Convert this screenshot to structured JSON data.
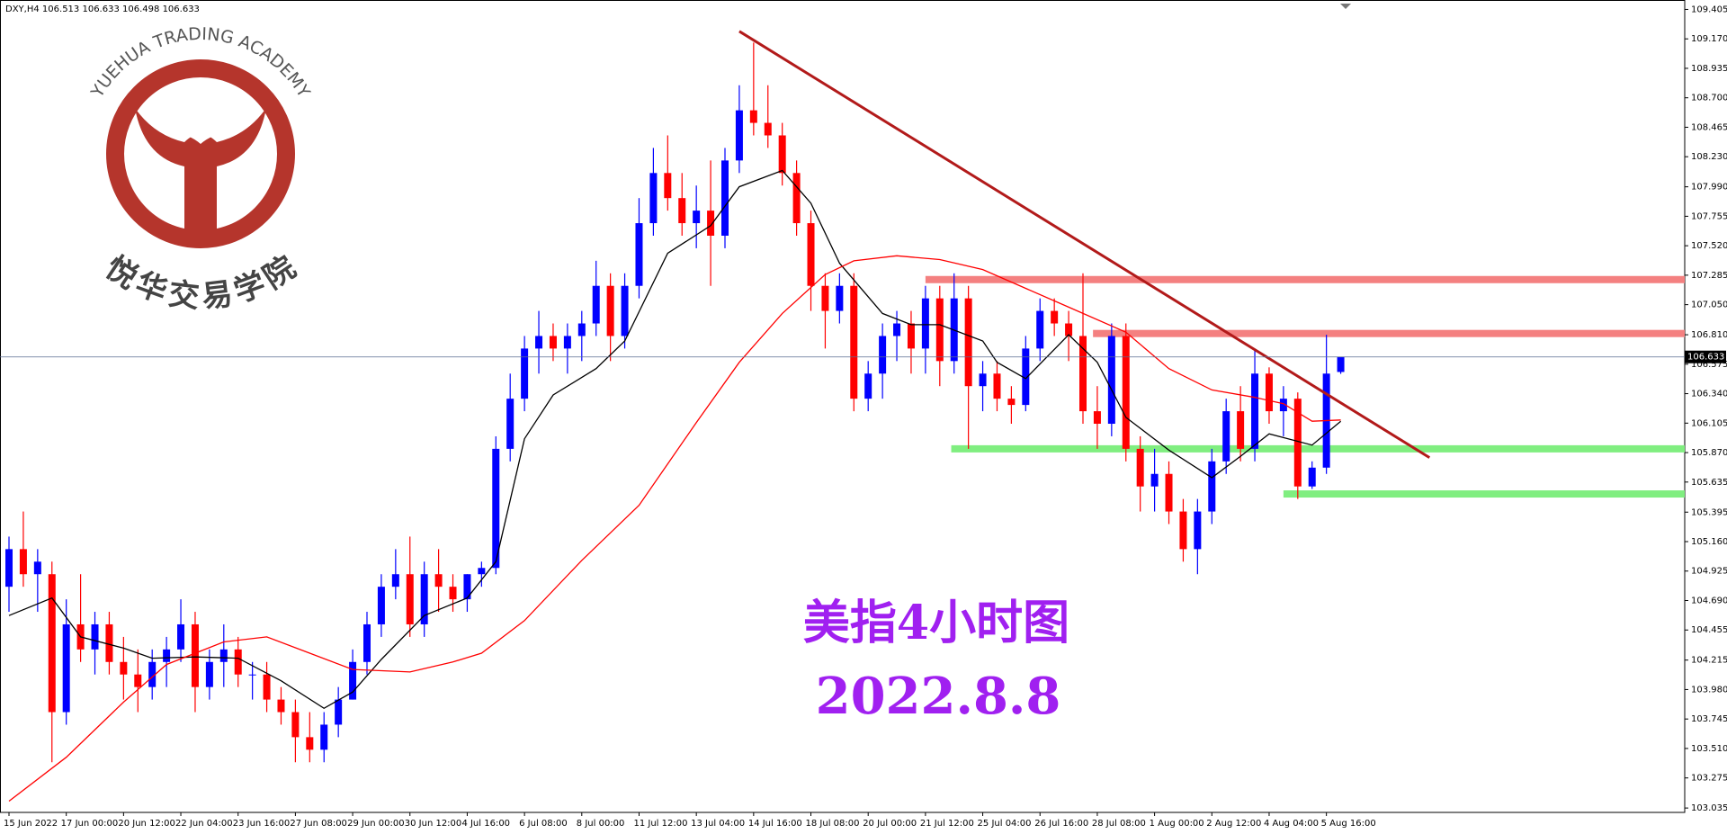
{
  "logo": {
    "arc_text": "YUEHUA TRADING ACADEMY",
    "name": "悦华交易学院"
  },
  "chart_data": {
    "type": "candlestick",
    "symbol": "DXY,H4",
    "annotations": [
      "美指4小时图",
      "2022.8.8"
    ],
    "up_color": "#0000ff",
    "down_color": "#ff0000",
    "ylim": [
      103.0,
      109.48
    ],
    "yticks": [
      109.405,
      {
        "value": 109.17,
        "label": "109.170"
      },
      108.935,
      {
        "value": 108.7,
        "label": "108.700"
      },
      108.465,
      {
        "value": 108.23,
        "label": "108.230"
      },
      {
        "value": 107.99,
        "label": "107.990"
      },
      107.755,
      {
        "value": 107.52,
        "label": "107.520"
      },
      107.285,
      {
        "value": 107.05,
        "label": "107.050"
      },
      {
        "value": 106.81,
        "label": "106.810"
      },
      106.575,
      {
        "value": 106.34,
        "label": "106.340"
      },
      106.105,
      {
        "value": 105.87,
        "label": "105.870"
      },
      105.635,
      105.395,
      {
        "value": 105.16,
        "label": "105.160"
      },
      104.925,
      {
        "value": 104.69,
        "label": "104.690"
      },
      104.455,
      104.215,
      {
        "value": 103.98,
        "label": "103.980"
      },
      103.745,
      {
        "value": 103.51,
        "label": "103.510"
      },
      103.275,
      103.035
    ],
    "categories": [
      "15 Jun 2022",
      null,
      null,
      null,
      "17 Jun 00:00",
      null,
      null,
      null,
      "20 Jun 12:00",
      null,
      null,
      null,
      "22 Jun 04:00",
      null,
      null,
      null,
      "23 Jun 16:00",
      null,
      null,
      null,
      "27 Jun 08:00",
      null,
      null,
      null,
      "29 Jun 00:00",
      null,
      null,
      null,
      "30 Jun 12:00",
      null,
      null,
      null,
      "4 Jul 16:00",
      null,
      null,
      null,
      "6 Jul 08:00",
      null,
      null,
      null,
      "8 Jul 00:00",
      null,
      null,
      null,
      "11 Jul 12:00",
      null,
      null,
      null,
      "13 Jul 04:00",
      null,
      null,
      null,
      "14 Jul 16:00",
      null,
      null,
      null,
      "18 Jul 08:00",
      null,
      null,
      null,
      "20 Jul 00:00",
      null,
      null,
      null,
      "21 Jul 12:00",
      null,
      null,
      null,
      "25 Jul 04:00",
      null,
      null,
      null,
      "26 Jul 16:00",
      null,
      null,
      null,
      "28 Jul 08:00",
      null,
      null,
      null,
      "1 Aug 00:00",
      null,
      null,
      null,
      "2 Aug 12:00",
      null,
      null,
      null,
      "4 Aug 04:00",
      null,
      null,
      null,
      "5 Aug 16:00",
      null
    ],
    "ohlc": [
      [
        104.8,
        105.2,
        104.6,
        105.1
      ],
      [
        105.1,
        105.4,
        104.8,
        104.9
      ],
      [
        104.9,
        105.1,
        104.6,
        105.0
      ],
      [
        104.9,
        105.0,
        103.4,
        103.8
      ],
      [
        103.8,
        104.7,
        103.7,
        104.5
      ],
      [
        104.5,
        104.9,
        104.2,
        104.3
      ],
      [
        104.3,
        104.6,
        104.1,
        104.5
      ],
      [
        104.5,
        104.6,
        104.1,
        104.2
      ],
      [
        104.2,
        104.4,
        103.9,
        104.1
      ],
      [
        104.1,
        104.3,
        103.8,
        104.0
      ],
      [
        104.0,
        104.3,
        103.9,
        104.2
      ],
      [
        104.2,
        104.4,
        104.0,
        104.3
      ],
      [
        104.3,
        104.7,
        104.2,
        104.5
      ],
      [
        104.5,
        104.6,
        103.8,
        104.0
      ],
      [
        104.0,
        104.3,
        103.9,
        104.2
      ],
      [
        104.2,
        104.5,
        104.0,
        104.3
      ],
      [
        104.3,
        104.4,
        104.0,
        104.1
      ],
      [
        104.1,
        104.2,
        103.9,
        104.1
      ],
      [
        104.1,
        104.2,
        103.8,
        103.9
      ],
      [
        103.9,
        104.0,
        103.7,
        103.8
      ],
      [
        103.8,
        103.9,
        103.4,
        103.6
      ],
      [
        103.6,
        103.8,
        103.4,
        103.5
      ],
      [
        103.5,
        103.8,
        103.4,
        103.7
      ],
      [
        103.7,
        104.0,
        103.6,
        103.9
      ],
      [
        103.9,
        104.3,
        103.9,
        104.2
      ],
      [
        104.2,
        104.6,
        104.1,
        104.5
      ],
      [
        104.5,
        104.9,
        104.4,
        104.8
      ],
      [
        104.8,
        105.1,
        104.7,
        104.9
      ],
      [
        104.9,
        105.2,
        104.4,
        104.5
      ],
      [
        104.5,
        105.0,
        104.4,
        104.9
      ],
      [
        104.9,
        105.1,
        104.6,
        104.8
      ],
      [
        104.8,
        104.9,
        104.6,
        104.7
      ],
      [
        104.7,
        104.9,
        104.6,
        104.9
      ],
      [
        104.9,
        105.0,
        104.8,
        104.95
      ],
      [
        104.95,
        106.0,
        104.9,
        105.9
      ],
      [
        105.9,
        106.5,
        105.8,
        106.3
      ],
      [
        106.3,
        106.8,
        106.2,
        106.7
      ],
      [
        106.7,
        107.0,
        106.5,
        106.8
      ],
      [
        106.8,
        106.9,
        106.6,
        106.7
      ],
      [
        106.7,
        106.9,
        106.5,
        106.8
      ],
      [
        106.8,
        107.0,
        106.6,
        106.9
      ],
      [
        106.9,
        107.4,
        106.8,
        107.2
      ],
      [
        107.2,
        107.3,
        106.6,
        106.8
      ],
      [
        106.8,
        107.3,
        106.7,
        107.2
      ],
      [
        107.2,
        107.9,
        107.1,
        107.7
      ],
      [
        107.7,
        108.3,
        107.6,
        108.1
      ],
      [
        108.1,
        108.4,
        107.8,
        107.9
      ],
      [
        107.9,
        108.1,
        107.6,
        107.7
      ],
      [
        107.7,
        108.0,
        107.5,
        107.8
      ],
      [
        107.8,
        108.2,
        107.2,
        107.6
      ],
      [
        107.6,
        108.3,
        107.5,
        108.2
      ],
      [
        108.2,
        108.8,
        108.1,
        108.6
      ],
      [
        108.6,
        109.14,
        108.4,
        108.5
      ],
      [
        108.5,
        108.8,
        108.3,
        108.4
      ],
      [
        108.4,
        108.5,
        108.0,
        108.1
      ],
      [
        108.1,
        108.2,
        107.6,
        107.7
      ],
      [
        107.7,
        107.8,
        107.0,
        107.2
      ],
      [
        107.2,
        107.3,
        106.7,
        107.0
      ],
      [
        107.0,
        107.3,
        106.9,
        107.2
      ],
      [
        107.2,
        107.3,
        106.2,
        106.3
      ],
      [
        106.3,
        106.6,
        106.2,
        106.5
      ],
      [
        106.5,
        106.9,
        106.3,
        106.8
      ],
      [
        106.8,
        107.0,
        106.6,
        106.9
      ],
      [
        106.9,
        107.0,
        106.5,
        106.7
      ],
      [
        106.7,
        107.2,
        106.5,
        107.1
      ],
      [
        107.1,
        107.2,
        106.4,
        106.6
      ],
      [
        106.6,
        107.3,
        106.5,
        107.1
      ],
      [
        107.1,
        107.2,
        105.9,
        106.4
      ],
      [
        106.4,
        106.6,
        106.2,
        106.5
      ],
      [
        106.5,
        106.6,
        106.2,
        106.3
      ],
      [
        106.3,
        106.4,
        106.1,
        106.25
      ],
      [
        106.25,
        106.8,
        106.2,
        106.7
      ],
      [
        106.7,
        107.1,
        106.6,
        107.0
      ],
      [
        107.0,
        107.1,
        106.8,
        106.9
      ],
      [
        106.9,
        107.0,
        106.6,
        106.8
      ],
      [
        106.8,
        107.3,
        106.1,
        106.2
      ],
      [
        106.2,
        106.4,
        105.9,
        106.1
      ],
      [
        106.1,
        106.9,
        106.0,
        106.8
      ],
      [
        106.8,
        106.9,
        105.8,
        105.9
      ],
      [
        105.9,
        106.0,
        105.4,
        105.6
      ],
      [
        105.6,
        105.9,
        105.4,
        105.7
      ],
      [
        105.7,
        105.8,
        105.3,
        105.4
      ],
      [
        105.4,
        105.5,
        105.0,
        105.1
      ],
      [
        105.1,
        105.5,
        104.9,
        105.4
      ],
      [
        105.4,
        105.9,
        105.3,
        105.8
      ],
      [
        105.8,
        106.3,
        105.7,
        106.2
      ],
      [
        106.2,
        106.4,
        105.8,
        105.9
      ],
      [
        105.9,
        106.7,
        105.8,
        106.5
      ],
      [
        106.5,
        106.55,
        106.1,
        106.2
      ],
      [
        106.2,
        106.4,
        106.0,
        106.3
      ],
      [
        106.3,
        106.35,
        105.5,
        105.6
      ],
      [
        105.6,
        105.8,
        105.58,
        105.75
      ],
      [
        105.75,
        106.81,
        105.7,
        106.5
      ],
      [
        106.513,
        106.633,
        106.498,
        106.633
      ]
    ],
    "lines": [
      {
        "color": "#000000",
        "x": [
          0,
          3,
          5,
          8,
          10,
          13,
          16,
          19,
          22,
          24,
          26,
          29,
          32,
          34,
          36,
          38,
          41,
          43,
          46,
          49,
          51,
          54,
          56,
          58,
          61,
          63,
          65,
          68,
          69,
          71,
          74,
          76,
          78,
          81,
          84,
          86,
          88,
          91,
          93
        ],
        "values": [
          104.57,
          104.71,
          104.4,
          104.31,
          104.23,
          104.24,
          104.23,
          104.05,
          103.83,
          103.96,
          104.22,
          104.57,
          104.71,
          105.0,
          105.98,
          106.33,
          106.54,
          106.76,
          107.46,
          107.68,
          107.99,
          108.12,
          107.86,
          107.38,
          106.98,
          106.89,
          106.89,
          106.76,
          106.59,
          106.46,
          106.81,
          106.59,
          106.15,
          105.89,
          105.67,
          105.84,
          106.02,
          105.93,
          106.12
        ]
      },
      {
        "color": "#ff0000",
        "x": [
          0,
          4,
          8,
          11,
          15,
          18,
          21,
          24,
          28,
          31,
          33,
          36,
          40,
          44,
          48,
          51,
          54,
          57,
          59,
          62,
          65,
          68,
          71,
          74,
          78,
          81,
          84,
          87,
          89,
          91,
          93
        ],
        "values": [
          103.09,
          103.44,
          103.88,
          104.18,
          104.36,
          104.4,
          104.27,
          104.14,
          104.12,
          104.2,
          104.27,
          104.53,
          105.01,
          105.45,
          106.11,
          106.59,
          106.98,
          107.29,
          107.4,
          107.44,
          107.41,
          107.33,
          107.18,
          107.03,
          106.83,
          106.54,
          106.37,
          106.31,
          106.26,
          106.12,
          106.13
        ]
      }
    ],
    "levels": [
      {
        "value": 107.25,
        "from": 64,
        "color": "#f48080"
      },
      {
        "value": 106.82,
        "from": 75.7,
        "color": "#f48080"
      },
      {
        "value": 105.9,
        "from": 65.8,
        "color": "#80ee80"
      },
      {
        "value": 105.54,
        "from": 89,
        "color": "#80ee80"
      }
    ],
    "trendline": {
      "x": [
        51,
        99.2
      ],
      "values": [
        109.23,
        105.83
      ],
      "color": "#b21a1a"
    }
  }
}
